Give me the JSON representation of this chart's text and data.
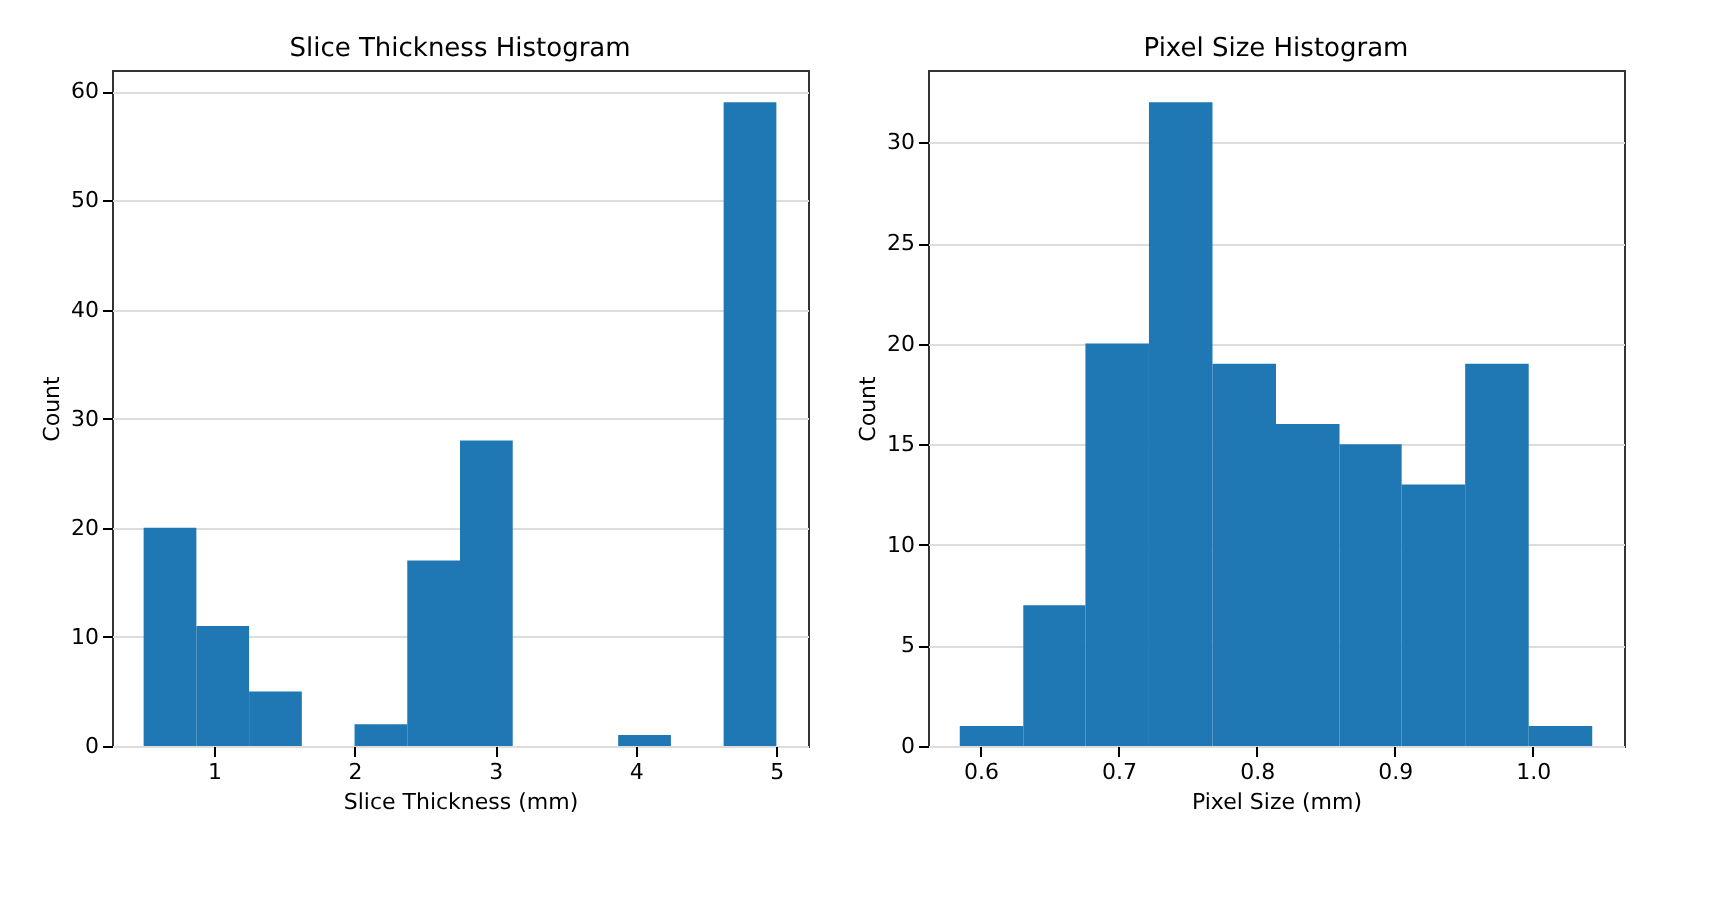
{
  "chart_data": [
    {
      "type": "histogram",
      "title": "Slice Thickness Histogram",
      "xlabel": "Slice Thickness (mm)",
      "ylabel": "Count",
      "color": "#1f77b4",
      "bins": [
        0.5,
        0.875,
        1.25,
        1.625,
        2.0,
        2.375,
        2.75,
        3.125,
        3.5,
        3.875,
        4.25,
        4.625,
        5.0
      ],
      "values": [
        20,
        11,
        5,
        0,
        2,
        17,
        28,
        0,
        0,
        1,
        0,
        59
      ],
      "xlim": [
        0.275,
        5.225
      ],
      "xticks": [
        1,
        2,
        3,
        4,
        5
      ],
      "ylim": [
        0,
        61.95
      ],
      "yticks": [
        0,
        10,
        20,
        30,
        40,
        50,
        60
      ],
      "grid": "y"
    },
    {
      "type": "histogram",
      "title": "Pixel Size Histogram",
      "xlabel": "Pixel Size (mm)",
      "ylabel": "Count",
      "color": "#1f77b4",
      "bins": [
        0.585,
        0.631,
        0.676,
        0.722,
        0.768,
        0.814,
        0.86,
        0.905,
        0.951,
        0.997,
        1.043
      ],
      "values": [
        1,
        7,
        20,
        32,
        19,
        16,
        15,
        13,
        19,
        1
      ],
      "xlim": [
        0.562,
        1.066
      ],
      "xticks": [
        0.6,
        0.7,
        0.8,
        0.9,
        {
          "value": 1,
          "label": "1.0"
        }
      ],
      "ylim": [
        0,
        33.6
      ],
      "yticks": [
        0,
        5,
        10,
        15,
        20,
        25,
        30
      ],
      "grid": "y"
    }
  ]
}
